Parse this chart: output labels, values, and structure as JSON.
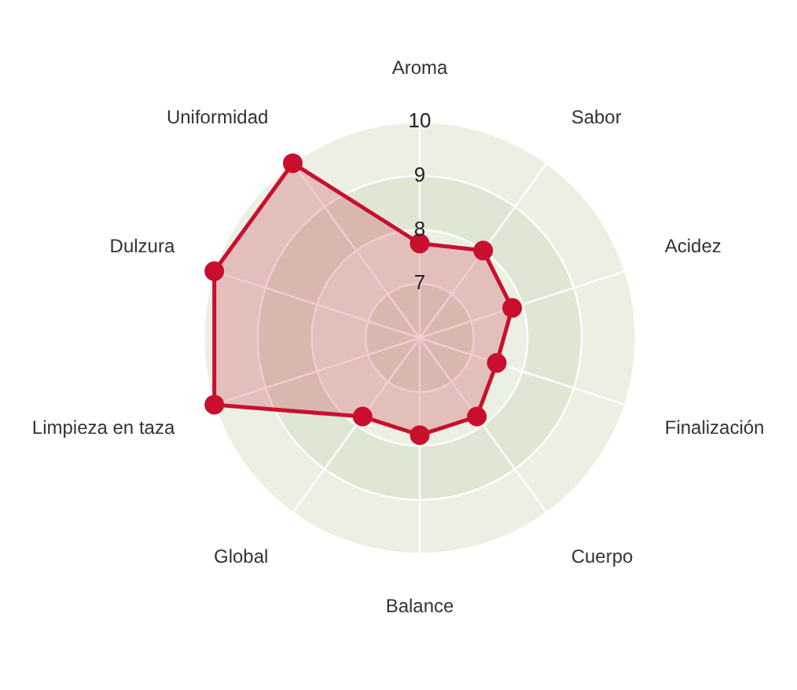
{
  "chart_data": {
    "type": "radar",
    "categories": [
      "Aroma",
      "Sabor",
      "Acidez",
      "Finalización",
      "Cuerpo",
      "Balance",
      "Global",
      "Limpieza en taza",
      "Dulzura",
      "Uniformidad"
    ],
    "series": [
      {
        "color": "#c8102e",
        "values": [
          7.75,
          8,
          7.8,
          7.5,
          7.8,
          7.8,
          7.8,
          10,
          10,
          10
        ]
      }
    ],
    "ylim": [
      6,
      10
    ],
    "yticks": [
      7,
      8,
      9,
      10
    ],
    "grid": true,
    "legend": false,
    "marker": "circle",
    "line_style": "solid"
  }
}
